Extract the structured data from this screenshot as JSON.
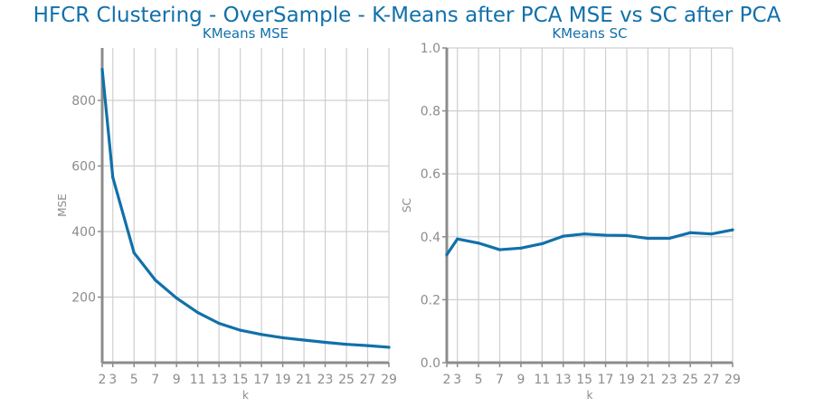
{
  "title": "HFCR Clustering - OverSample - K-Means after PCA MSE vs SC after PCA",
  "colors": {
    "title": "#1170aa",
    "series": "#1170aa",
    "grid": "#cfcfcf",
    "axis": "#8c8c8c"
  },
  "chart_data": [
    {
      "type": "line",
      "title": "KMeans MSE",
      "xlabel": "k",
      "ylabel": "MSE",
      "xlim": [
        2,
        29
      ],
      "ylim": [
        0,
        960
      ],
      "xticks": [
        2,
        3,
        5,
        7,
        9,
        11,
        13,
        15,
        17,
        19,
        21,
        23,
        25,
        27,
        29
      ],
      "yticks": [
        200,
        400,
        600,
        800
      ],
      "ytick_labels": [
        "200",
        "400",
        "600",
        "800"
      ],
      "grid": true,
      "x": [
        2,
        3,
        5,
        7,
        9,
        11,
        13,
        15,
        17,
        19,
        21,
        23,
        25,
        27,
        29
      ],
      "series": [
        {
          "values": [
            895,
            565,
            335,
            252,
            197,
            153,
            120,
            99,
            86,
            76,
            69,
            62,
            56,
            52,
            47
          ]
        }
      ]
    },
    {
      "type": "line",
      "title": "KMeans SC",
      "xlabel": "k",
      "ylabel": "SC",
      "xlim": [
        2,
        29
      ],
      "ylim": [
        0,
        1.0
      ],
      "xticks": [
        2,
        3,
        5,
        7,
        9,
        11,
        13,
        15,
        17,
        19,
        21,
        23,
        25,
        27,
        29
      ],
      "yticks": [
        0,
        0.2,
        0.4,
        0.6,
        0.8,
        1.0
      ],
      "ytick_labels": [
        "0.0",
        "0.2",
        "0.4",
        "0.6",
        "0.8",
        "1.0"
      ],
      "grid": true,
      "x": [
        2,
        3,
        5,
        7,
        9,
        11,
        13,
        15,
        17,
        19,
        21,
        23,
        25,
        27,
        29
      ],
      "series": [
        {
          "values": [
            0.343,
            0.393,
            0.38,
            0.359,
            0.364,
            0.378,
            0.402,
            0.409,
            0.405,
            0.404,
            0.395,
            0.395,
            0.413,
            0.409,
            0.422
          ]
        }
      ]
    }
  ]
}
